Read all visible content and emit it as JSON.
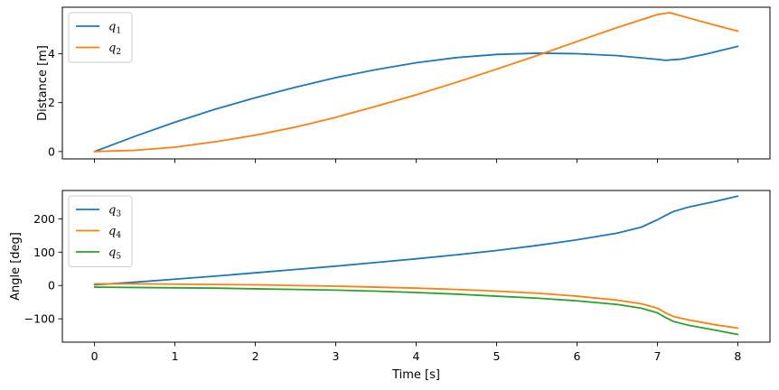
{
  "chart_data": [
    {
      "type": "line",
      "title": "",
      "xlabel": "",
      "ylabel": "Distance [m]",
      "xlim": [
        -0.4,
        8.4
      ],
      "ylim": [
        -0.3,
        5.9
      ],
      "xticks": [
        0,
        1,
        2,
        3,
        4,
        5,
        6,
        7,
        8
      ],
      "yticks": [
        0,
        2,
        4
      ],
      "show_xtick_labels": false,
      "grid": false,
      "legend_position": "top-left",
      "series": [
        {
          "name": "q1",
          "label_base": "q",
          "label_sub": "1",
          "color": "#1f77b4",
          "x": [
            0,
            0.5,
            1,
            1.5,
            2,
            2.5,
            3,
            3.5,
            4,
            4.5,
            5,
            5.5,
            6,
            6.5,
            7,
            7.1,
            7.3,
            7.6,
            8
          ],
          "y": [
            0,
            0.62,
            1.2,
            1.73,
            2.2,
            2.63,
            3.02,
            3.35,
            3.63,
            3.84,
            3.97,
            4.02,
            4.0,
            3.92,
            3.77,
            3.73,
            3.78,
            3.98,
            4.3
          ]
        },
        {
          "name": "q2",
          "label_base": "q",
          "label_sub": "2",
          "color": "#ff7f0e",
          "x": [
            0,
            0.5,
            1,
            1.5,
            2,
            2.5,
            3,
            3.5,
            4,
            4.5,
            5,
            5.5,
            6,
            6.5,
            7,
            7.15,
            7.4,
            7.7,
            8
          ],
          "y": [
            0,
            0.05,
            0.18,
            0.4,
            0.67,
            1.0,
            1.4,
            1.85,
            2.32,
            2.83,
            3.37,
            3.92,
            4.5,
            5.07,
            5.6,
            5.68,
            5.45,
            5.18,
            4.92
          ]
        }
      ]
    },
    {
      "type": "line",
      "title": "",
      "xlabel": "Time [s]",
      "ylabel": "Angle [deg]",
      "xlim": [
        -0.4,
        8.4
      ],
      "ylim": [
        -170,
        285
      ],
      "xticks": [
        0,
        1,
        2,
        3,
        4,
        5,
        6,
        7,
        8
      ],
      "yticks": [
        -100,
        0,
        100,
        200
      ],
      "ytick_labels": [
        "−100",
        "0",
        "100",
        "200"
      ],
      "show_xtick_labels": true,
      "grid": false,
      "legend_position": "top-left",
      "series": [
        {
          "name": "q3",
          "label_base": "q",
          "label_sub": "3",
          "color": "#1f77b4",
          "x": [
            0,
            0.5,
            1,
            1.5,
            2,
            2.5,
            3,
            3.5,
            4,
            4.5,
            5,
            5.5,
            6,
            6.5,
            6.8,
            7.0,
            7.1,
            7.2,
            7.4,
            7.7,
            8
          ],
          "y": [
            2,
            10,
            19,
            28,
            38,
            48,
            58,
            69,
            80,
            92,
            105,
            120,
            137,
            157,
            175,
            197,
            210,
            222,
            236,
            251,
            268
          ]
        },
        {
          "name": "q4",
          "label_base": "q",
          "label_sub": "4",
          "color": "#ff7f0e",
          "x": [
            0,
            0.5,
            1,
            1.5,
            2,
            2.5,
            3,
            3.5,
            4,
            4.5,
            5,
            5.5,
            6,
            6.5,
            6.8,
            7.0,
            7.1,
            7.2,
            7.4,
            7.7,
            8
          ],
          "y": [
            5,
            5,
            4,
            3,
            2,
            0,
            -2,
            -5,
            -8,
            -12,
            -17,
            -23,
            -32,
            -44,
            -55,
            -68,
            -82,
            -93,
            -104,
            -117,
            -128
          ]
        },
        {
          "name": "q5",
          "label_base": "q",
          "label_sub": "5",
          "color": "#2ca02c",
          "x": [
            0,
            0.5,
            1,
            1.5,
            2,
            2.5,
            3,
            3.5,
            4,
            4.5,
            5,
            5.5,
            6,
            6.5,
            6.8,
            7.0,
            7.1,
            7.2,
            7.4,
            7.7,
            8
          ],
          "y": [
            -5,
            -6,
            -7,
            -8,
            -10,
            -12,
            -14,
            -17,
            -21,
            -26,
            -32,
            -38,
            -46,
            -57,
            -68,
            -82,
            -96,
            -108,
            -120,
            -133,
            -147
          ]
        }
      ]
    }
  ]
}
